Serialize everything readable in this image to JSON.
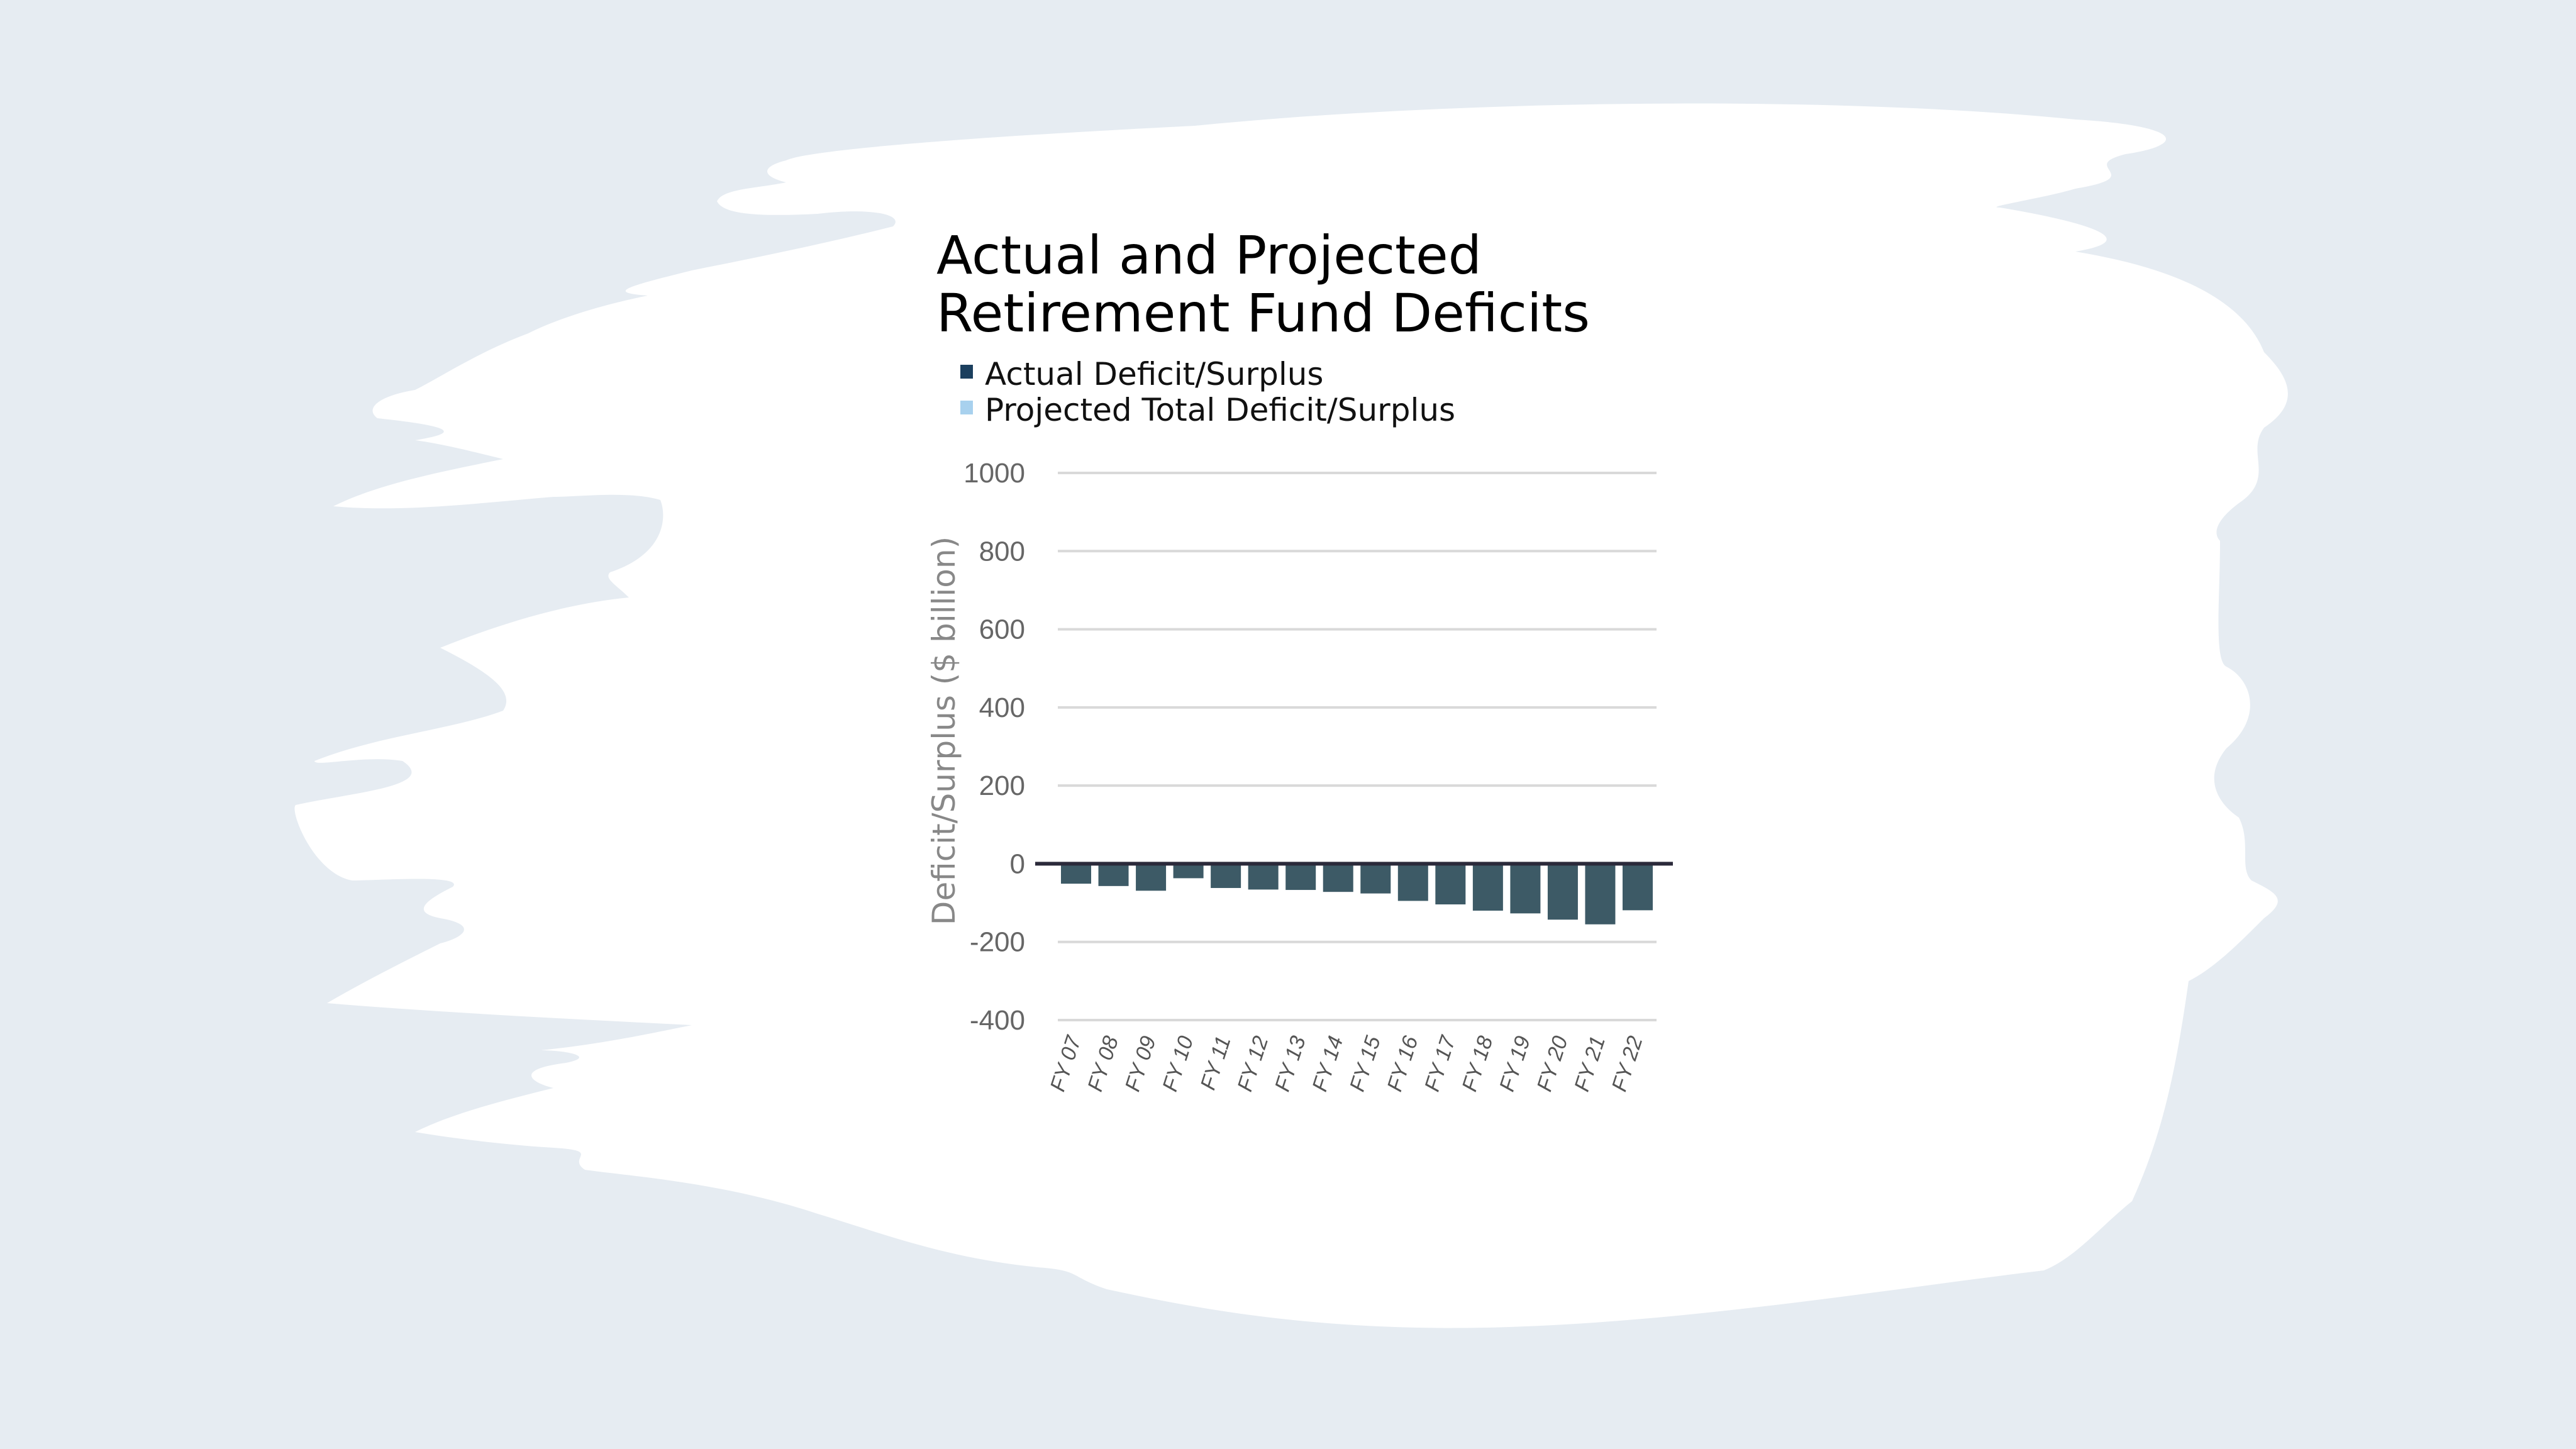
{
  "colors": {
    "background": "#e6ecf2",
    "canvas": "#ffffff",
    "actual": "#1b3f5e",
    "projected": "#a8d1ee",
    "bar": "#3d5a66",
    "grid": "#d9d9d9",
    "zero_line": "#2b2a3a"
  },
  "chart_data": {
    "type": "bar",
    "title_lines": [
      "Actual and Projected",
      "Retirement Fund Deficits"
    ],
    "legend": [
      "Actual Deficit/Surplus",
      "Projected Total Deficit/Surplus"
    ],
    "legend_placement": "top-left",
    "xlabel": "",
    "ylabel": "Deficit/Surplus ($ billion)",
    "ylim": [
      -400,
      1000
    ],
    "yticks": [
      1000,
      800,
      600,
      400,
      200,
      0,
      -200,
      -400
    ],
    "ytick_labels": [
      "1000",
      "800",
      "600",
      "400",
      "200",
      "0",
      "-200",
      "-400"
    ],
    "grid": true,
    "categories": [
      "FY 07",
      "FY 08",
      "FY 09",
      "FY 10",
      "FY 11",
      "FY 12",
      "FY 13",
      "FY 14",
      "FY 15",
      "FY 16",
      "FY 17",
      "FY 18",
      "FY 19",
      "FY 20",
      "FY 21",
      "FY 22"
    ],
    "series": [
      {
        "name": "Deficit/Surplus",
        "values": [
          -51,
          -57,
          -69,
          -37,
          -62,
          -66,
          -67,
          -72,
          -76,
          -95,
          -104,
          -120,
          -127,
          -143,
          -155,
          -119
        ]
      }
    ]
  }
}
